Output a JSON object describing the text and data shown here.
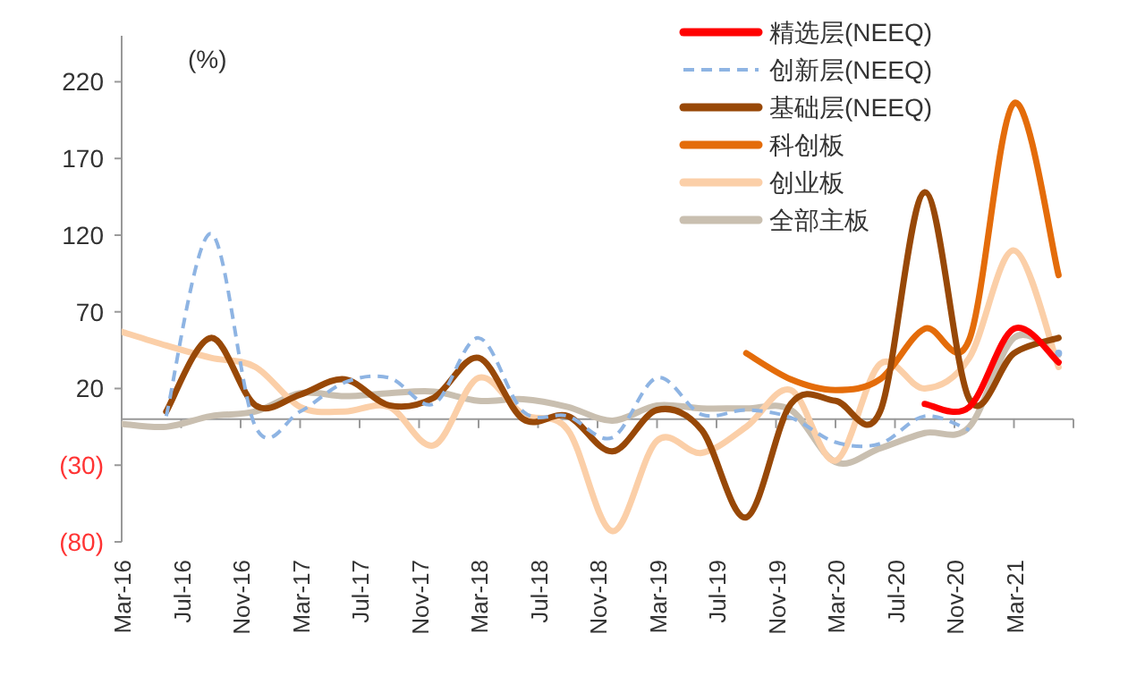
{
  "chart_data": {
    "type": "line",
    "annotations": [
      "(%)"
    ],
    "x": [
      "2016-03",
      "2016-06",
      "2016-09",
      "2016-12",
      "2017-03",
      "2017-06",
      "2017-09",
      "2017-12",
      "2018-03",
      "2018-06",
      "2018-09",
      "2018-12",
      "2019-03",
      "2019-06",
      "2019-09",
      "2019-12",
      "2020-03",
      "2020-06",
      "2020-09",
      "2020-12",
      "2021-03",
      "2021-06"
    ],
    "series": [
      {
        "name": "精选层(NEEQ)",
        "color": "#ff0000",
        "values": [
          null,
          null,
          null,
          null,
          null,
          null,
          null,
          null,
          null,
          null,
          null,
          null,
          null,
          null,
          null,
          null,
          null,
          null,
          10,
          8,
          59,
          37
        ]
      },
      {
        "name": "创新层(NEEQ)",
        "color": "#8eb4e3",
        "line_style": "dashed",
        "values": [
          null,
          2,
          121,
          -5,
          5,
          24,
          27,
          10,
          53,
          5,
          2,
          -12,
          27,
          3,
          6,
          1,
          -15,
          -16,
          2,
          -7,
          null,
          43
        ]
      },
      {
        "name": "基础层(NEEQ)",
        "color": "#984807",
        "values": [
          null,
          5,
          53,
          9,
          16,
          26,
          9,
          14,
          40,
          0,
          2,
          -21,
          6,
          -7,
          -64,
          10,
          12,
          5,
          148,
          13,
          43,
          53
        ]
      },
      {
        "name": "科创板",
        "color": "#e46c0a",
        "values": [
          null,
          null,
          null,
          null,
          null,
          null,
          null,
          null,
          null,
          null,
          null,
          null,
          null,
          null,
          43,
          26,
          19,
          26,
          59,
          52,
          206,
          94
        ]
      },
      {
        "name": "创业板",
        "color": "#fbcfa8",
        "values": [
          57,
          48,
          40,
          34,
          8,
          5,
          8,
          -17,
          27,
          3,
          -7,
          -73,
          -14,
          -22,
          -5,
          19,
          -27,
          36,
          20,
          40,
          110,
          34
        ]
      },
      {
        "name": "全部主板",
        "color": "#c9bfb0",
        "values": [
          -3,
          -5,
          2,
          5,
          17,
          15,
          17,
          18,
          12,
          13,
          8,
          -1,
          9,
          7,
          7,
          6,
          -28,
          -19,
          -9,
          -5,
          53,
          42
        ]
      }
    ],
    "xlim": [
      "2016-03",
      "2021-07"
    ],
    "xticks": [
      {
        "value": "2016-03",
        "label": "Mar-16"
      },
      {
        "value": "2016-07",
        "label": "Jul-16"
      },
      {
        "value": "2016-11",
        "label": "Nov-16"
      },
      {
        "value": "2017-03",
        "label": "Mar-17"
      },
      {
        "value": "2017-07",
        "label": "Jul-17"
      },
      {
        "value": "2017-11",
        "label": "Nov-17"
      },
      {
        "value": "2018-03",
        "label": "Mar-18"
      },
      {
        "value": "2018-07",
        "label": "Jul-18"
      },
      {
        "value": "2018-11",
        "label": "Nov-18"
      },
      {
        "value": "2019-03",
        "label": "Mar-19"
      },
      {
        "value": "2019-07",
        "label": "Jul-19"
      },
      {
        "value": "2019-11",
        "label": "Nov-19"
      },
      {
        "value": "2020-03",
        "label": "Mar-20"
      },
      {
        "value": "2020-07",
        "label": "Jul-20"
      },
      {
        "value": "2020-11",
        "label": "Nov-20"
      },
      {
        "value": "2021-03",
        "label": "Mar-21"
      }
    ],
    "ylim": [
      -80,
      250
    ],
    "yticks": [
      220,
      170,
      120,
      70,
      20,
      {
        "value": -30,
        "label": "(30)"
      },
      {
        "value": -80,
        "label": "(80)"
      }
    ],
    "grid": false,
    "legend": "top right",
    "line_style": "solid"
  }
}
